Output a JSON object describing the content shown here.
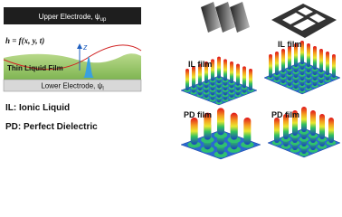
{
  "diagram": {
    "upper_electrode": {
      "label": "Upper Electrode, ψ",
      "subscript": "up"
    },
    "height_function": "h = f(x, y, t)",
    "axis_label": "z",
    "film_label": "Thin Liquid Film",
    "lower_electrode": {
      "label": "Lower Electrode, ψ",
      "subscript": "l"
    }
  },
  "legend": [
    "IL: Ionic Liquid",
    "PD: Perfect Dielectric"
  ],
  "panels": [
    "IL film",
    "IL film",
    "PD film",
    "PD film"
  ]
}
